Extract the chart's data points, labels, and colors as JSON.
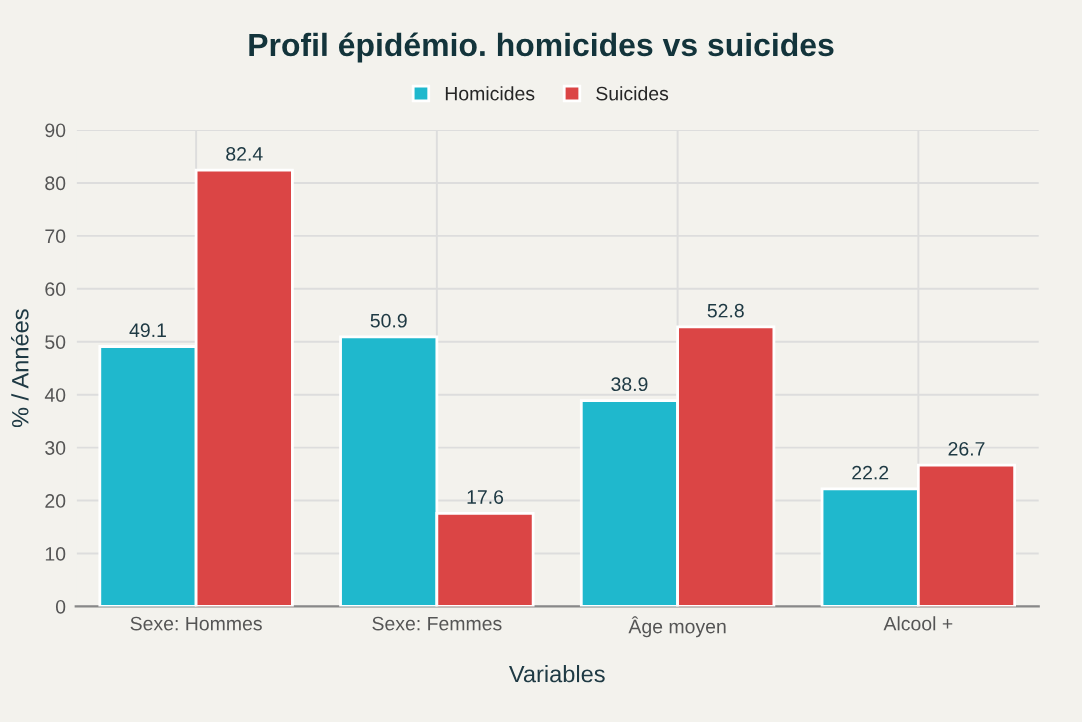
{
  "chart_data": {
    "type": "bar",
    "title": "Profil épidémio. homicides vs suicides",
    "xlabel": "Variables",
    "ylabel": "% / Années",
    "categories": [
      "Sexe: Hommes",
      "Sexe: Femmes",
      "Âge moyen",
      "Alcool +"
    ],
    "series": [
      {
        "name": "Homicides",
        "color": "#1fb8cd",
        "values": [
          49.1,
          50.9,
          38.9,
          22.2
        ]
      },
      {
        "name": "Suicides",
        "color": "#db4545",
        "values": [
          82.4,
          17.6,
          52.8,
          26.7
        ]
      }
    ],
    "ylim": [
      0,
      90
    ],
    "yticks": [
      0,
      10,
      20,
      30,
      40,
      50,
      60,
      70,
      80,
      90
    ],
    "grid": true,
    "legend": "top",
    "data_labels": true
  }
}
